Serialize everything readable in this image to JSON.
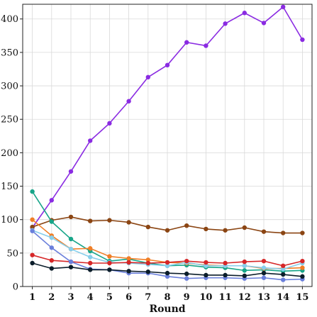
{
  "chart_data": {
    "type": "line",
    "title": "",
    "xlabel": "Round",
    "ylabel": "",
    "x": [
      1,
      2,
      3,
      4,
      5,
      6,
      7,
      8,
      9,
      10,
      11,
      12,
      13,
      14,
      15
    ],
    "xlim": [
      0.5,
      15.5
    ],
    "ylim": [
      0,
      422
    ],
    "yticks": [
      0,
      50,
      100,
      150,
      200,
      250,
      300,
      350,
      400
    ],
    "grid": true,
    "legend": "none",
    "series": [
      {
        "color": "#8A2BE2",
        "values": [
          88,
          129,
          172,
          218,
          244,
          277,
          313,
          331,
          365,
          360,
          393,
          409,
          394,
          418,
          369
        ]
      },
      {
        "color": "#8B4513",
        "values": [
          89,
          99,
          104,
          98,
          99,
          96,
          89,
          84,
          91,
          86,
          84,
          88,
          82,
          80,
          80
        ]
      },
      {
        "color": "#17A589",
        "values": [
          142,
          97,
          71,
          53,
          38,
          41,
          35,
          31,
          32,
          29,
          28,
          24,
          25,
          23,
          24
        ]
      },
      {
        "color": "#F07E26",
        "values": [
          100,
          76,
          56,
          57,
          45,
          42,
          40,
          36,
          35,
          32,
          31,
          31,
          27,
          27,
          28
        ]
      },
      {
        "color": "#87CEEB",
        "values": [
          84,
          73,
          56,
          44,
          36,
          35,
          33,
          31,
          36,
          31,
          31,
          31,
          28,
          26,
          35
        ]
      },
      {
        "color": "#D62728",
        "values": [
          47,
          39,
          37,
          35,
          35,
          36,
          35,
          36,
          38,
          36,
          35,
          37,
          38,
          31,
          38
        ]
      },
      {
        "color": "#6A7FDB",
        "values": [
          83,
          58,
          37,
          26,
          25,
          20,
          20,
          15,
          12,
          13,
          13,
          12,
          13,
          10,
          11
        ]
      },
      {
        "color": "#0B1D2A",
        "values": [
          35,
          27,
          29,
          25,
          25,
          23,
          22,
          20,
          19,
          17,
          17,
          16,
          20,
          18,
          15
        ]
      }
    ]
  }
}
